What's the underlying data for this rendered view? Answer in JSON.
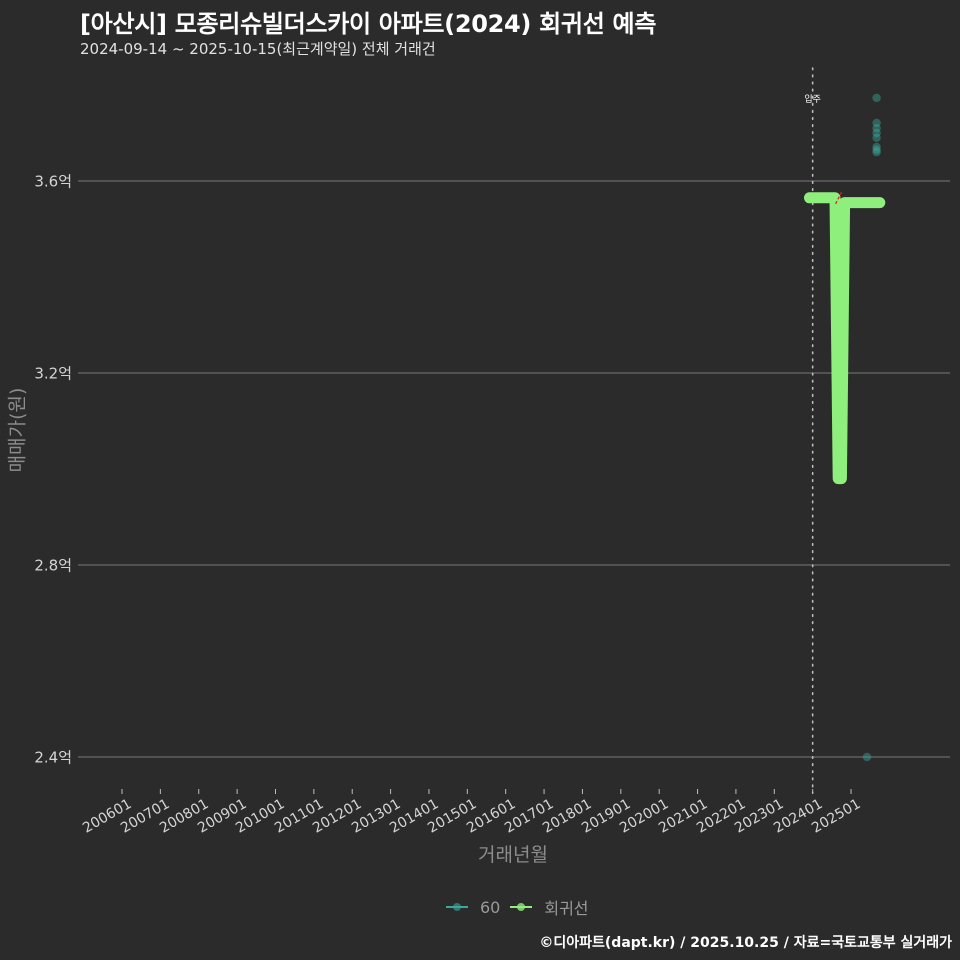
{
  "header": {
    "title": "[아산시] 모종리슈빌더스카이 아파트(2024) 회귀선 예측",
    "subtitle": "2024-09-14 ~ 2025-10-15(최근계약일) 전체 거래건"
  },
  "footer": {
    "caption": "©디아파트(dapt.kr) / 2025.10.25 / 자료=국토교통부 실거래가"
  },
  "colors": {
    "background": "#2b2b2b",
    "gridline": "#6a6a6a",
    "regression": "#8fef7c",
    "scatter_60": "#3aa89c",
    "annotation_line": "#bdbdbd",
    "trend_marker": "#d62020"
  },
  "chart_data": {
    "type": "scatter",
    "title": "[아산시] 모종리슈빌더스카이 아파트(2024) 회귀선 예측",
    "subtitle": "2024-09-14 ~ 2025-10-15(최근계약일) 전체 거래건",
    "xlabel": "거래년월",
    "ylabel": "매매가(원)",
    "ylim": [
      2.33,
      3.82
    ],
    "y_unit": "억",
    "grid": true,
    "legend_position": "bottom",
    "y_ticks": [
      {
        "value": 3.6,
        "label": "3.6억"
      },
      {
        "value": 3.2,
        "label": "3.2억"
      },
      {
        "value": 2.8,
        "label": "2.8억"
      },
      {
        "value": 2.4,
        "label": "2.4억"
      }
    ],
    "x_ticks": [
      "200601",
      "200701",
      "200801",
      "200901",
      "201001",
      "201101",
      "201201",
      "201301",
      "201401",
      "201501",
      "201601",
      "201701",
      "201801",
      "201901",
      "202001",
      "202101",
      "202201",
      "202301",
      "202401",
      "202501"
    ],
    "annotations": [
      {
        "type": "vline",
        "x": "2024-01",
        "label": "입주",
        "style": "dotted"
      }
    ],
    "series": [
      {
        "name": "60",
        "type": "scatter",
        "color": "#3aa89c",
        "points": [
          {
            "x": "2025-06",
            "y": 2.4
          },
          {
            "x": "2025-09",
            "y": 3.773
          },
          {
            "x": "2025-09",
            "y": 3.721
          },
          {
            "x": "2025-09",
            "y": 3.71
          },
          {
            "x": "2025-09",
            "y": 3.7
          },
          {
            "x": "2025-09",
            "y": 3.69
          },
          {
            "x": "2025-09",
            "y": 3.671
          },
          {
            "x": "2025-09",
            "y": 3.665
          },
          {
            "x": "2025-09",
            "y": 3.66
          }
        ]
      },
      {
        "name": "회귀선",
        "type": "line",
        "color": "#8fef7c",
        "points": [
          {
            "x": "2023-12",
            "y": 3.565
          },
          {
            "x": "2024-08",
            "y": 3.565
          },
          {
            "x": "2024-09",
            "y": 2.98
          },
          {
            "x": "2024-10",
            "y": 2.98
          },
          {
            "x": "2024-11",
            "y": 3.555
          },
          {
            "x": "2025-10",
            "y": 3.555
          }
        ]
      }
    ]
  },
  "legend": {
    "items": [
      {
        "label": "60",
        "color": "#3aa89c"
      },
      {
        "label": "회귀선",
        "color": "#8fef7c"
      }
    ]
  }
}
